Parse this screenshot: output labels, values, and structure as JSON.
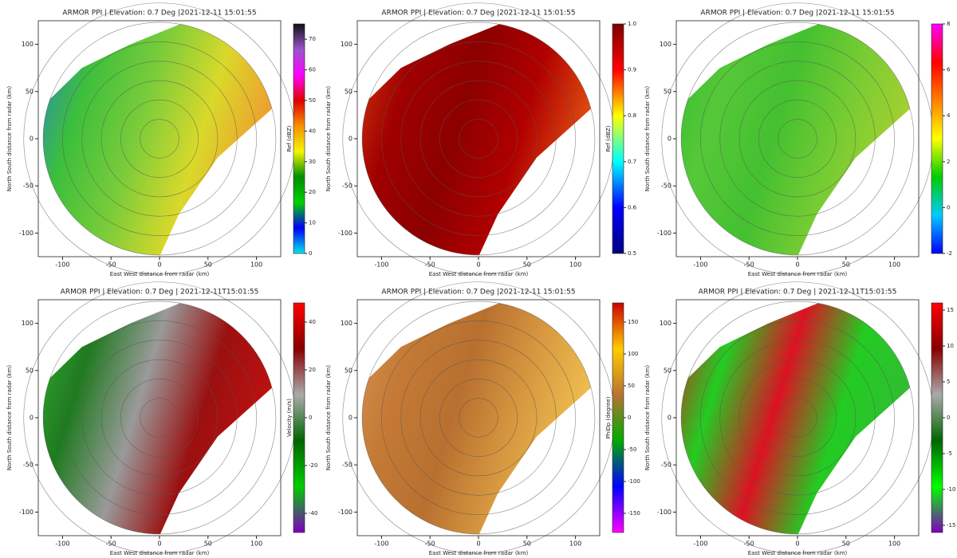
{
  "chart_data": [
    {
      "type": "ppi",
      "title": "ARMOR PPI | Elevation: 0.7 Deg |2021-12-11 15:01:55",
      "xlabel": "East West distance from radar (km)",
      "ylabel": "North South distance from radar (km)",
      "xlim": [
        -125,
        125
      ],
      "ylim": [
        -125,
        125
      ],
      "xticks": [
        -100,
        -50,
        0,
        50,
        100
      ],
      "yticks": [
        -100,
        -50,
        0,
        50,
        100
      ],
      "colorbar_label": "Ref (dBZ)",
      "clim": [
        0,
        75
      ],
      "cticks": [
        0,
        10,
        20,
        30,
        40,
        50,
        60,
        70
      ],
      "colormap": [
        "#00e5ee",
        "#0000f5",
        "#00d000",
        "#008f00",
        "#f5f500",
        "#f59000",
        "#e00000",
        "#ff00ff",
        "#9955cc",
        "#111111"
      ],
      "field_colors": [
        "#2a7fd0",
        "#3cbf3c",
        "#7acc3a",
        "#d9d92a",
        "#f09a30"
      ]
    },
    {
      "type": "ppi",
      "title": "ARMOR PPI | Elevation: 0.7 Deg |2021-12-11 15:01:55",
      "xlabel": "East West distance from radar (km)",
      "ylabel": "North South distance from radar (km)",
      "xlim": [
        -125,
        125
      ],
      "ylim": [
        -125,
        125
      ],
      "xticks": [
        -100,
        -50,
        0,
        50,
        100
      ],
      "yticks": [
        -100,
        -50,
        0,
        50,
        100
      ],
      "colorbar_label": "Ref (dBZ)",
      "clim": [
        0.5,
        1
      ],
      "cticks": [
        0.5,
        0.6,
        0.7,
        0.8,
        0.9,
        {
          "value": 1,
          "label": "1.0"
        }
      ],
      "colormap": [
        "#00007f",
        "#0000ff",
        "#00ffff",
        "#ffff00",
        "#ff0000",
        "#7f0000"
      ],
      "field_colors": [
        "#d84010",
        "#a00000",
        "#8c0000",
        "#b00000",
        "#e05010"
      ]
    },
    {
      "type": "ppi",
      "title": "ARMOR PPI | Elevation: 0.7 Deg |2021-12-11 15:01:55",
      "xlabel": "East West distance from radar (km)",
      "ylabel": "North South distance from radar (km)",
      "xlim": [
        -125,
        125
      ],
      "ylim": [
        -125,
        125
      ],
      "xticks": [
        -100,
        -50,
        0,
        50,
        100
      ],
      "yticks": [
        -100,
        -50,
        0,
        50,
        100
      ],
      "clim": [
        -2,
        8
      ],
      "cticks": [
        -2,
        0,
        2,
        4,
        6,
        8
      ],
      "colormap": [
        "#0000ff",
        "#00ccff",
        "#00cc00",
        "#ffff00",
        "#ff8000",
        "#ff0000",
        "#ff00ff"
      ],
      "field_colors": [
        "#33bb33",
        "#55c838",
        "#44c030",
        "#77cc33",
        "#a8d030"
      ]
    },
    {
      "type": "ppi",
      "title": "ARMOR PPI | Elevation: 0.7 Deg | 2021-12-11T15:01:55",
      "xlabel": "East West distance from radar (km)",
      "ylabel": "North South distance from radar (km)",
      "xlim": [
        -125,
        125
      ],
      "ylim": [
        -125,
        125
      ],
      "xticks": [
        -100,
        -50,
        0,
        50,
        100
      ],
      "yticks": [
        -100,
        -50,
        0,
        50,
        100
      ],
      "colorbar_label": "Velocity (m/s)",
      "clim": [
        -48,
        48
      ],
      "cticks": [
        -40,
        -20,
        0,
        20,
        40
      ],
      "colormap": [
        "#7f00bf",
        "#00cc00",
        "#006600",
        "#aaaaaa",
        "#880000",
        "#ff0000"
      ],
      "field_colors": [
        "#33b033",
        "#1f7a1f",
        "#9a9a9a",
        "#9a1010",
        "#c01010"
      ]
    },
    {
      "type": "ppi",
      "title": "ARMOR PPI | Elevation: 0.7 Deg |2021-12-11 15:01:55",
      "xlabel": "East West distance from radar (km)",
      "ylabel": "North South distance from radar (km)",
      "xlim": [
        -125,
        125
      ],
      "ylim": [
        -125,
        125
      ],
      "xticks": [
        -100,
        -50,
        0,
        50,
        100
      ],
      "yticks": [
        -100,
        -50,
        0,
        50,
        100
      ],
      "colorbar_label": "PhiDp (degree)",
      "clim": [
        -180,
        180
      ],
      "cticks": [
        -150,
        -100,
        -50,
        0,
        50,
        100,
        150
      ],
      "colormap": [
        "#ff00ff",
        "#0000ff",
        "#00aa00",
        "#b87333",
        "#ffcc00",
        "#cc0000"
      ],
      "field_colors": [
        "#d8955a",
        "#c47a35",
        "#b87030",
        "#d89a40",
        "#f0c050"
      ]
    },
    {
      "type": "ppi",
      "title": "ARMOR PPI | Elevation: 0.7 Deg | 2021-12-11T15:01:55",
      "xlabel": "East West distance from radar (km)",
      "ylabel": "North South distance from radar (km)",
      "xlim": [
        -125,
        125
      ],
      "ylim": [
        -125,
        125
      ],
      "xticks": [
        -100,
        -50,
        0,
        50,
        100
      ],
      "yticks": [
        -100,
        -50,
        0,
        50,
        100
      ],
      "clim": [
        -16,
        16
      ],
      "cticks": [
        -15,
        -10,
        -5,
        0,
        5,
        10,
        15
      ],
      "colormap": [
        "#7f00bf",
        "#00ff00",
        "#006600",
        "#aaaaaa",
        "#880000",
        "#ff0000"
      ],
      "field_colors": [
        "#e01020",
        "#22cc22",
        "#dd1122",
        "#22cc22",
        "#33bb33"
      ]
    }
  ]
}
